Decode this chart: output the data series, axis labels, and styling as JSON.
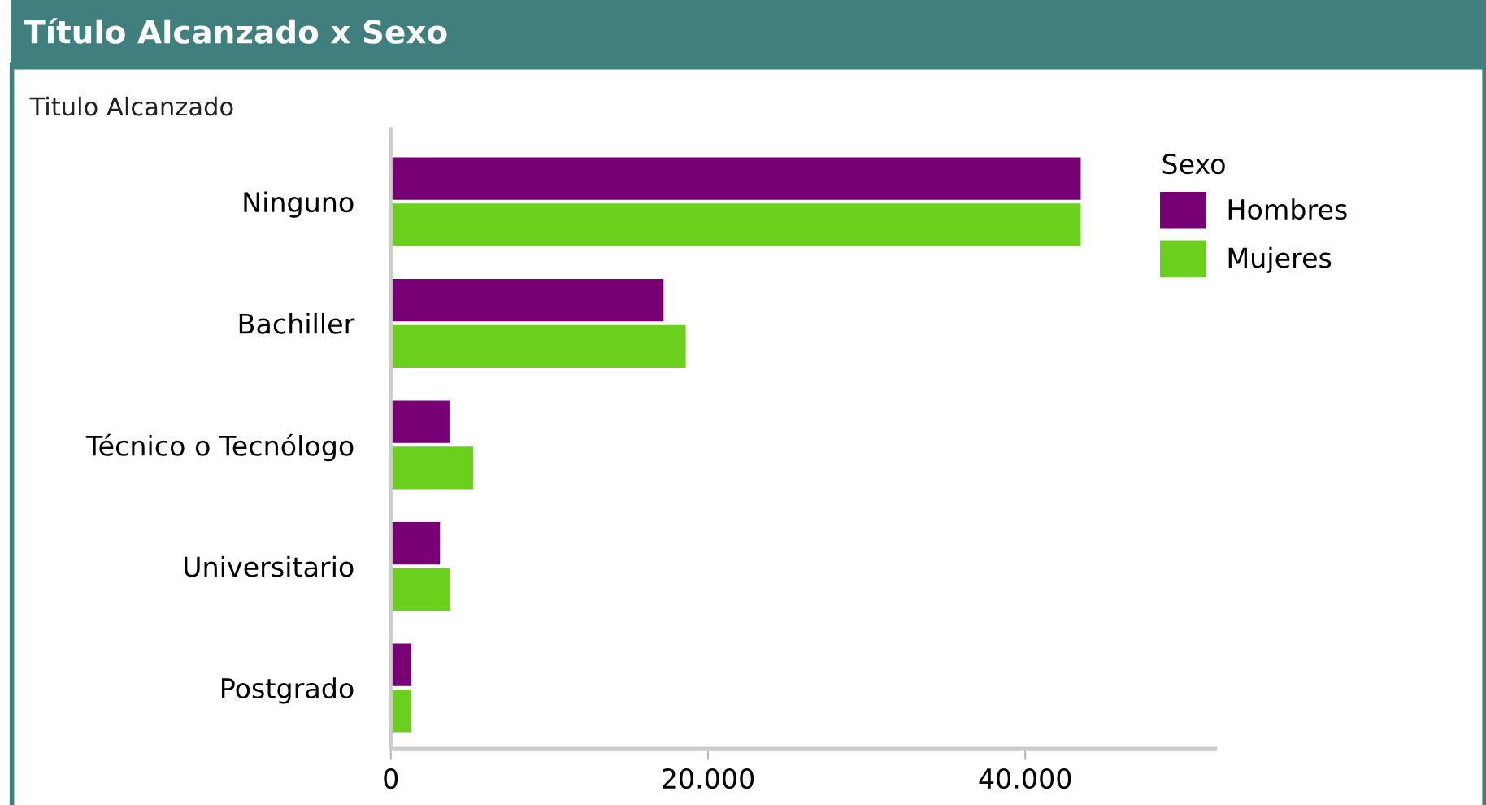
{
  "chart_data": {
    "type": "bar",
    "orientation": "horizontal",
    "title": "Título Alcanzado x Sexo",
    "ylabel": "Titulo Alcanzado",
    "legend_title": "Sexo",
    "categories": [
      "Ninguno",
      "Bachiller",
      "Técnico o Tecnólogo",
      "Universitario",
      "Postgrado"
    ],
    "series": [
      {
        "name": "Hombres",
        "color": "#760074",
        "values": [
          43500,
          17200,
          3700,
          3100,
          1300
        ]
      },
      {
        "name": "Mujeres",
        "color": "#6bcf1d",
        "values": [
          43500,
          18600,
          5200,
          3700,
          1300
        ]
      }
    ],
    "xlim": [
      0,
      52000
    ],
    "xticks": [
      0,
      {
        "value": 20000,
        "label": "20.000"
      },
      {
        "value": 40000,
        "label": "40.000"
      }
    ],
    "grid": false,
    "legend": "top right"
  }
}
